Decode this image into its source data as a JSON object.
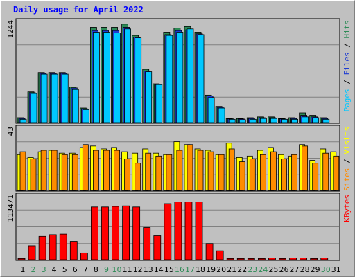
{
  "title": "Daily usage for April 2022",
  "colors": {
    "hits": "#2e8b57",
    "files": "#1e3cd2",
    "pages": "#00c8ff",
    "visits": "#ffff00",
    "sites": "#ff8c00",
    "kbytes": "#ff0000",
    "weekend": "#2e8b57",
    "weekday": "#000000",
    "title": "#0000ff"
  },
  "chart_data": [
    {
      "type": "bar",
      "name": "pages-files-hits",
      "categories": [
        "1",
        "2",
        "3",
        "4",
        "5",
        "6",
        "7",
        "8",
        "9",
        "10",
        "11",
        "12",
        "13",
        "14",
        "15",
        "16",
        "17",
        "18",
        "19",
        "20",
        "21",
        "22",
        "23",
        "24",
        "25",
        "26",
        "27",
        "28",
        "29",
        "30",
        "31"
      ],
      "ymax_label": "1244",
      "ylim": [
        0,
        1244
      ],
      "right_label_parts": [
        "Pages",
        "Files",
        "Hits"
      ],
      "series": [
        {
          "name": "Hits",
          "values": [
            60,
            380,
            620,
            620,
            620,
            440,
            180,
            1180,
            1180,
            1180,
            1220,
            1080,
            660,
            480,
            1120,
            1170,
            1190,
            1120,
            340,
            200,
            50,
            50,
            60,
            70,
            70,
            50,
            60,
            120,
            90,
            60,
            0
          ]
        },
        {
          "name": "Files",
          "values": [
            50,
            370,
            610,
            610,
            610,
            430,
            170,
            1140,
            1140,
            1140,
            1180,
            1060,
            640,
            470,
            1090,
            1140,
            1150,
            1100,
            330,
            190,
            45,
            45,
            50,
            60,
            60,
            45,
            50,
            90,
            70,
            50,
            0
          ]
        },
        {
          "name": "Pages",
          "values": [
            40,
            360,
            600,
            600,
            600,
            410,
            160,
            1120,
            1120,
            1110,
            1160,
            1050,
            630,
            470,
            1080,
            1120,
            1160,
            1090,
            310,
            180,
            40,
            35,
            40,
            50,
            50,
            40,
            40,
            70,
            60,
            40,
            0
          ]
        }
      ]
    },
    {
      "type": "bar",
      "name": "sites-visits",
      "categories": [
        "1",
        "2",
        "3",
        "4",
        "5",
        "6",
        "7",
        "8",
        "9",
        "10",
        "11",
        "12",
        "13",
        "14",
        "15",
        "16",
        "17",
        "18",
        "19",
        "20",
        "21",
        "22",
        "23",
        "24",
        "25",
        "26",
        "27",
        "28",
        "29",
        "30",
        "31"
      ],
      "ymax_label": "43",
      "ylim": [
        0,
        43
      ],
      "right_label_parts": [
        "Sites",
        "Visits"
      ],
      "series": [
        {
          "name": "Visits",
          "values": [
            25,
            23,
            27,
            28,
            26,
            26,
            30,
            31,
            29,
            30,
            27,
            26,
            29,
            26,
            25,
            34,
            32,
            29,
            28,
            25,
            33,
            23,
            24,
            28,
            30,
            25,
            24,
            32,
            21,
            29,
            27
          ]
        },
        {
          "name": "Sites",
          "values": [
            27,
            22,
            28,
            28,
            25,
            25,
            32,
            28,
            28,
            28,
            22,
            19,
            26,
            24,
            25,
            28,
            32,
            28,
            27,
            25,
            29,
            20,
            22,
            25,
            27,
            22,
            25,
            31,
            19,
            26,
            24
          ]
        }
      ]
    },
    {
      "type": "bar",
      "name": "kbytes",
      "categories": [
        "1",
        "2",
        "3",
        "4",
        "5",
        "6",
        "7",
        "8",
        "9",
        "10",
        "11",
        "12",
        "13",
        "14",
        "15",
        "16",
        "17",
        "18",
        "19",
        "20",
        "21",
        "22",
        "23",
        "24",
        "25",
        "26",
        "27",
        "28",
        "29",
        "30",
        "31"
      ],
      "ymax_label": "113471",
      "ylim": [
        0,
        113471
      ],
      "right_label_parts": [
        "KBytes"
      ],
      "series": [
        {
          "name": "KBytes",
          "values": [
            2000,
            25000,
            42000,
            45000,
            46000,
            33000,
            12000,
            95000,
            95000,
            96000,
            97000,
            95000,
            58000,
            43000,
            101000,
            104000,
            104000,
            104000,
            29000,
            16000,
            2000,
            2000,
            2000,
            2000,
            3000,
            2000,
            3000,
            3000,
            2000,
            3000,
            0
          ]
        }
      ]
    }
  ]
}
